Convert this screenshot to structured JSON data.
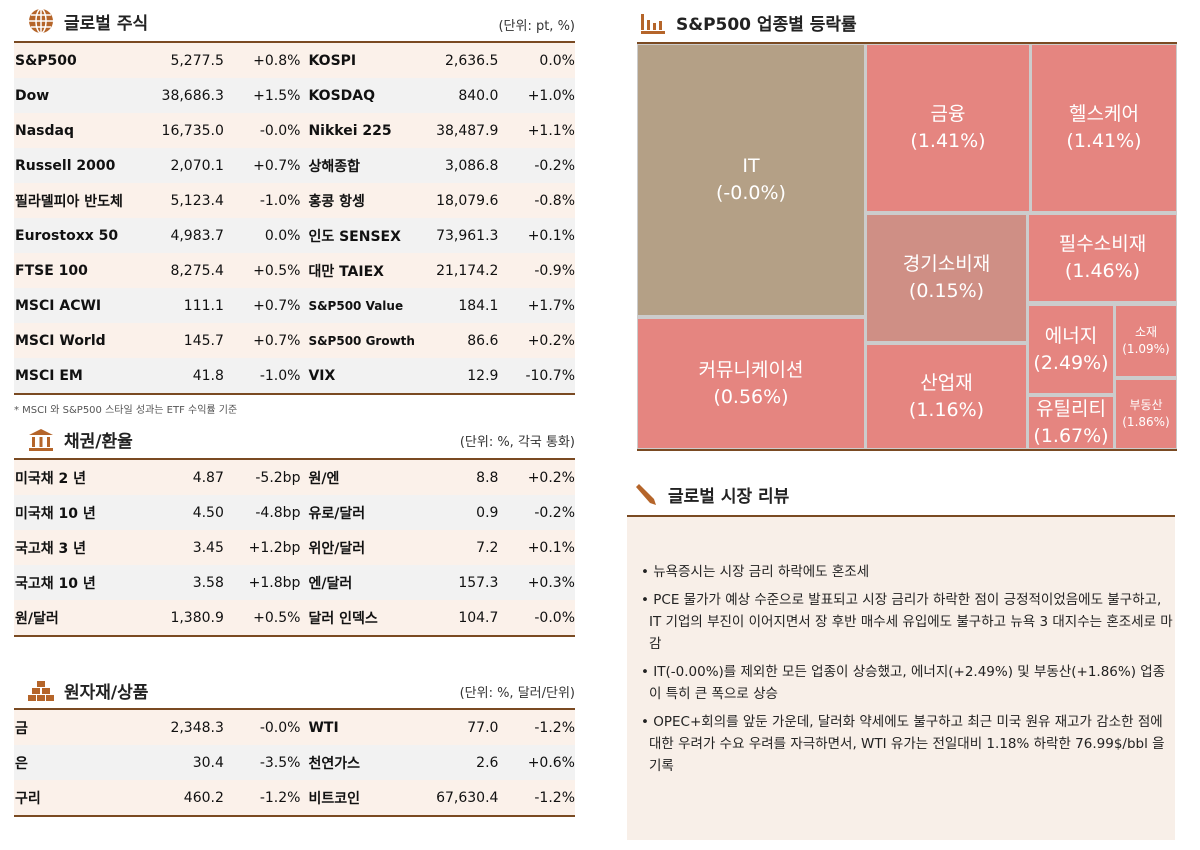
{
  "global_stocks": {
    "title": "글로벌 주식",
    "unit": "(단위: pt, %)",
    "icon": "globe-icon",
    "rows": [
      [
        "S&P500",
        "5,277.5",
        "+0.8%",
        "KOSPI",
        "2,636.5",
        "0.0%"
      ],
      [
        "Dow",
        "38,686.3",
        "+1.5%",
        "KOSDAQ",
        "840.0",
        "+1.0%"
      ],
      [
        "Nasdaq",
        "16,735.0",
        "-0.0%",
        "Nikkei 225",
        "38,487.9",
        "+1.1%"
      ],
      [
        "Russell 2000",
        "2,070.1",
        "+0.7%",
        "상해종합",
        "3,086.8",
        "-0.2%"
      ],
      [
        "필라델피아 반도체",
        "5,123.4",
        "-1.0%",
        "홍콩 항셍",
        "18,079.6",
        "-0.8%"
      ],
      [
        "Eurostoxx 50",
        "4,983.7",
        "0.0%",
        "인도 SENSEX",
        "73,961.3",
        "+0.1%"
      ],
      [
        "FTSE 100",
        "8,275.4",
        "+0.5%",
        "대만 TAIEX",
        "21,174.2",
        "-0.9%"
      ],
      [
        "MSCI ACWI",
        "111.1",
        "+0.7%",
        "S&P500 Value",
        "184.1",
        "+1.7%"
      ],
      [
        "MSCI World",
        "145.7",
        "+0.7%",
        "S&P500 Growth",
        "86.6",
        "+0.2%"
      ],
      [
        "MSCI EM",
        "41.8",
        "-1.0%",
        "VIX",
        "12.9",
        "-10.7%"
      ]
    ],
    "note": "* MSCI 와 S&P500 스타일 성과는 ETF 수익률 기준"
  },
  "bonds_fx": {
    "title": "채권/환율",
    "unit": "(단위: %, 각국 통화)",
    "icon": "bank-icon",
    "rows": [
      [
        "미국채 2 년",
        "4.87",
        "-5.2bp",
        "원/엔",
        "8.8",
        "+0.2%"
      ],
      [
        "미국채 10 년",
        "4.50",
        "-4.8bp",
        "유로/달러",
        "0.9",
        "-0.2%"
      ],
      [
        "국고채 3 년",
        "3.45",
        "+1.2bp",
        "위안/달러",
        "7.2",
        "+0.1%"
      ],
      [
        "국고채 10 년",
        "3.58",
        "+1.8bp",
        "엔/달러",
        "157.3",
        "+0.3%"
      ],
      [
        "원/달러",
        "1,380.9",
        "+0.5%",
        "달러 인덱스",
        "104.7",
        "-0.0%"
      ]
    ]
  },
  "commodities": {
    "title": "원자재/상품",
    "unit": "(단위: %, 달러/단위)",
    "icon": "gold-bars-icon",
    "rows": [
      [
        "금",
        "2,348.3",
        "-0.0%",
        "WTI",
        "77.0",
        "-1.2%"
      ],
      [
        "은",
        "30.4",
        "-3.5%",
        "천연가스",
        "2.6",
        "+0.6%"
      ],
      [
        "구리",
        "460.2",
        "-1.2%",
        "비트코인",
        "67,630.4",
        "-1.2%"
      ]
    ]
  },
  "sectors": {
    "title": "S&P500 업종별 등락률",
    "icon": "bar-chart-icon",
    "colors": {
      "positive": "#e58580",
      "neutral": "#b4a086",
      "slight": "#cf8f85"
    },
    "items": [
      {
        "name": "IT",
        "value": "(-0.0%)"
      },
      {
        "name": "커뮤니케이션",
        "value": "(0.56%)"
      },
      {
        "name": "금융",
        "value": "(1.41%)"
      },
      {
        "name": "헬스케어",
        "value": "(1.41%)"
      },
      {
        "name": "경기소비재",
        "value": "(0.15%)"
      },
      {
        "name": "산업재",
        "value": "(1.16%)"
      },
      {
        "name": "필수소비재",
        "value": "(1.46%)"
      },
      {
        "name": "에너지",
        "value": "(2.49%)"
      },
      {
        "name": "유틸리티",
        "value": "(1.67%)"
      },
      {
        "name": "소재",
        "value": "(1.09%)"
      },
      {
        "name": "부동산",
        "value": "(1.86%)"
      }
    ]
  },
  "review": {
    "title": "글로벌 시장 리뷰",
    "icon": "pen-icon",
    "bullets": [
      "뉴욕증시는 시장 금리 하락에도 혼조세",
      "PCE 물가가 예상 수준으로 발표되고 시장 금리가 하락한 점이 긍정적이었음에도 불구하고, IT 기업의 부진이 이어지면서 장 후반 매수세 유입에도 불구하고 뉴욕 3 대지수는 혼조세로 마감",
      "IT(-0.00%)를 제외한 모든 업종이 상승했고, 에너지(+2.49%) 및 부동산(+1.86%) 업종이 특히 큰 폭으로 상승",
      "OPEC+회의를 앞둔 가운데, 달러화 약세에도 불구하고 최근 미국 원유 재고가 감소한 점에 대한 우려가 수요 우려를 자극하면서, WTI 유가는 전일대비 1.18% 하락한 76.99$/bbl 을 기록"
    ]
  }
}
